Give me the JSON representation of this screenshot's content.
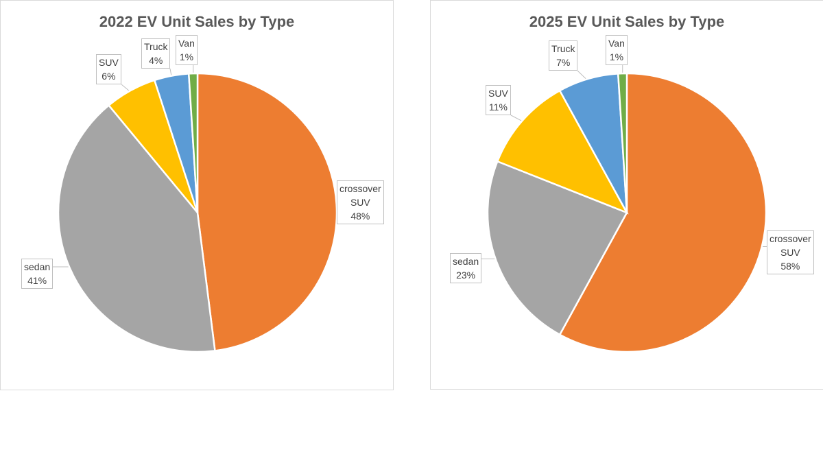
{
  "chart_data": [
    {
      "type": "pie",
      "title": "2022 EV Unit Sales by Type",
      "categories": [
        "crossover SUV",
        "sedan",
        "SUV",
        "Truck",
        "Van"
      ],
      "values": [
        48,
        41,
        6,
        4,
        1
      ],
      "labels": [
        [
          "crossover",
          "SUV",
          "48%"
        ],
        [
          "sedan",
          "41%"
        ],
        [
          "SUV",
          "6%"
        ],
        [
          "Truck",
          "4%"
        ],
        [
          "Van",
          "1%"
        ]
      ],
      "colors": [
        "#ED7D31",
        "#A5A5A5",
        "#FFC000",
        "#5B9BD5",
        "#70AD47"
      ],
      "start": "12 o'clock",
      "direction": "clockwise",
      "legend": "none"
    },
    {
      "type": "pie",
      "title": "2025 EV Unit Sales by Type",
      "categories": [
        "crossover SUV",
        "sedan",
        "SUV",
        "Truck",
        "Van"
      ],
      "values": [
        58,
        23,
        11,
        7,
        1
      ],
      "labels": [
        [
          "crossover",
          "SUV",
          "58%"
        ],
        [
          "sedan",
          "23%"
        ],
        [
          "SUV",
          "11%"
        ],
        [
          "Truck",
          "7%"
        ],
        [
          "Van",
          "1%"
        ]
      ],
      "colors": [
        "#ED7D31",
        "#A5A5A5",
        "#FFC000",
        "#5B9BD5",
        "#70AD47"
      ],
      "start": "12 o'clock",
      "direction": "clockwise",
      "legend": "none"
    }
  ]
}
